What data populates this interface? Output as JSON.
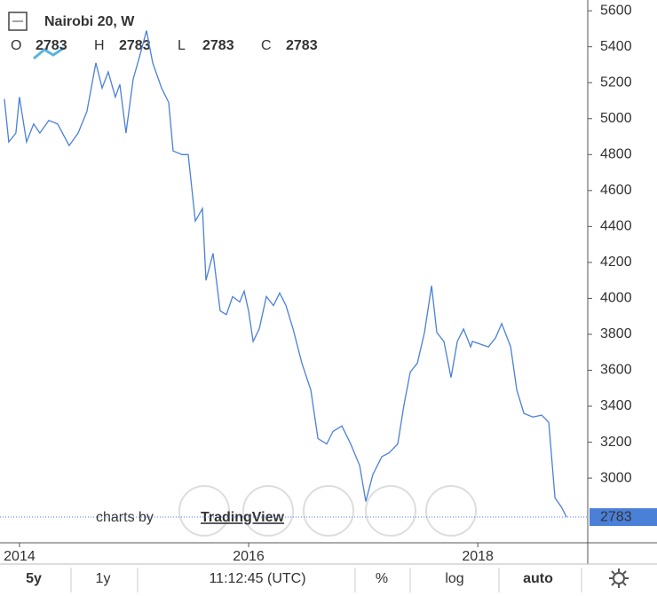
{
  "chart_data": {
    "type": "line",
    "title": "Nairobi 20, W",
    "ohlc": [
      {
        "label": "O",
        "value": 2783
      },
      {
        "label": "H",
        "value": 2783
      },
      {
        "label": "L",
        "value": 2783
      },
      {
        "label": "C",
        "value": 2783
      }
    ],
    "x": [
      2013.868,
      2013.907,
      2013.969,
      2014.0,
      2014.062,
      2014.124,
      2014.178,
      2014.256,
      2014.333,
      2014.434,
      2014.512,
      2014.589,
      2014.667,
      2014.721,
      2014.775,
      2014.837,
      2014.876,
      2014.93,
      2014.992,
      2015.054,
      2015.109,
      2015.163,
      2015.24,
      2015.302,
      2015.341,
      2015.419,
      2015.473,
      2015.535,
      2015.597,
      2015.628,
      2015.69,
      2015.752,
      2015.806,
      2015.86,
      2015.922,
      2015.961,
      2016.0,
      2016.039,
      2016.093,
      2016.155,
      2016.217,
      2016.271,
      2016.326,
      2016.388,
      2016.465,
      2016.543,
      2016.605,
      2016.682,
      2016.736,
      2016.814,
      2016.891,
      2016.969,
      2017.023,
      2017.085,
      2017.163,
      2017.225,
      2017.302,
      2017.357,
      2017.411,
      2017.473,
      2017.535,
      2017.597,
      2017.643,
      2017.705,
      2017.767,
      2017.822,
      2017.876,
      2017.938,
      2017.953,
      2018.093,
      2018.155,
      2018.209,
      2018.287,
      2018.341,
      2018.403,
      2018.481,
      2018.558,
      2018.62,
      2018.674,
      2018.729,
      2018.775
    ],
    "series": [
      {
        "color": "#4a80d8",
        "values": [
          5110,
          4870,
          4920,
          5120,
          4870,
          4970,
          4920,
          4990,
          4970,
          4850,
          4920,
          5040,
          5310,
          5170,
          5260,
          5120,
          5190,
          4920,
          5220,
          5360,
          5490,
          5310,
          5170,
          5090,
          4820,
          4800,
          4800,
          4430,
          4500,
          4100,
          4250,
          3930,
          3910,
          4010,
          3980,
          4040,
          3930,
          3760,
          3830,
          4010,
          3960,
          4030,
          3960,
          3830,
          3640,
          3490,
          3220,
          3190,
          3260,
          3290,
          3190,
          3070,
          2870,
          3020,
          3120,
          3140,
          3190,
          3410,
          3590,
          3640,
          3810,
          4070,
          3810,
          3760,
          3560,
          3760,
          3830,
          3730,
          3760,
          3730,
          3780,
          3860,
          3730,
          3490,
          3360,
          3340,
          3350,
          3310,
          2890,
          2840,
          2783
        ]
      }
    ],
    "xlim": [
      2013.83,
      2018.96
    ],
    "xticks": [
      2014,
      2016,
      2018
    ],
    "ylim": [
      2650,
      5660
    ],
    "yticks": [
      3000,
      3200,
      3400,
      3600,
      3800,
      4000,
      4200,
      4400,
      4600,
      4800,
      5000,
      5200,
      5400,
      5600
    ],
    "log_scale": false,
    "grid": false
  },
  "watermark": {
    "prefix": "charts by",
    "brand": "TradingView"
  },
  "toolbar": {
    "ranges": [
      "5y",
      "1y"
    ],
    "time": "11:12:45 (UTC)",
    "options": [
      "%",
      "log",
      "auto"
    ]
  }
}
